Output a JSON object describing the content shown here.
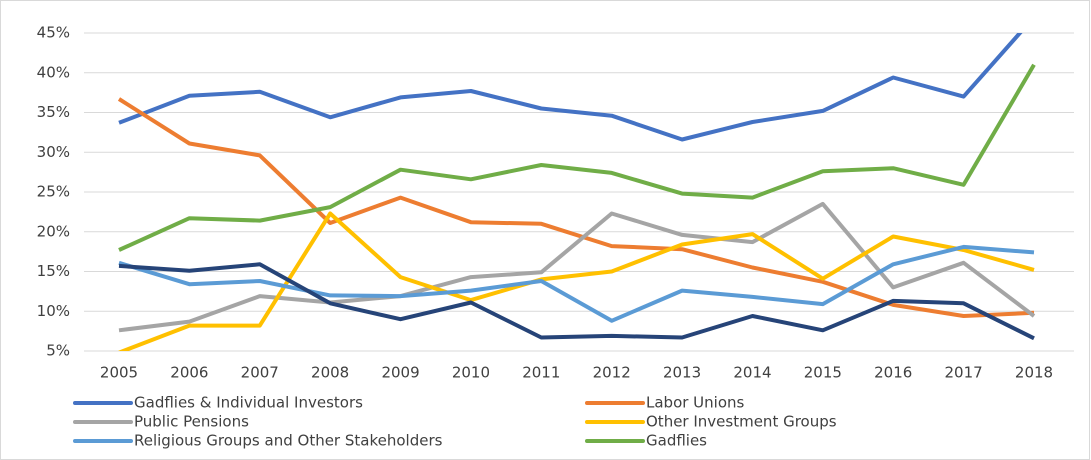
{
  "chart_data": {
    "type": "line",
    "x": [
      "2005",
      "2006",
      "2007",
      "2008",
      "2009",
      "2010",
      "2011",
      "2012",
      "2013",
      "2014",
      "2015",
      "2016",
      "2017",
      "2018"
    ],
    "series": [
      {
        "name": "Gadflies & Individual Investors",
        "color": "#4472c4",
        "values": [
          33.7,
          37.1,
          37.6,
          34.4,
          36.9,
          37.7,
          35.5,
          34.6,
          31.6,
          33.8,
          35.2,
          39.4,
          37.0,
          47.0
        ]
      },
      {
        "name": "Labor Unions",
        "color": "#ed7d31",
        "values": [
          36.7,
          31.1,
          29.6,
          21.1,
          24.3,
          21.2,
          21.0,
          18.2,
          17.8,
          15.5,
          13.7,
          10.8,
          9.4,
          9.8
        ]
      },
      {
        "name": "Public Pensions",
        "color": "#a5a5a5",
        "values": [
          7.6,
          8.7,
          11.9,
          11.1,
          11.9,
          14.3,
          14.9,
          22.3,
          19.6,
          18.7,
          23.5,
          13.0,
          16.1,
          9.4
        ]
      },
      {
        "name": "Other Investment Groups",
        "color": "#ffc000",
        "values": [
          4.8,
          8.2,
          8.2,
          22.3,
          14.3,
          11.4,
          14.0,
          15.0,
          18.4,
          19.7,
          14.1,
          19.4,
          17.7,
          15.2
        ]
      },
      {
        "name": "Religious Groups and Other Stakeholders",
        "color": "#5b9bd5",
        "values": [
          16.1,
          13.4,
          13.8,
          12.0,
          11.9,
          12.6,
          13.8,
          8.8,
          12.6,
          11.8,
          10.9,
          15.9,
          18.1,
          17.4
        ]
      },
      {
        "name": "Gadflies",
        "color": "#70ad47",
        "values": [
          17.7,
          21.7,
          21.4,
          23.1,
          27.8,
          26.6,
          28.4,
          27.4,
          24.8,
          24.3,
          27.6,
          28.0,
          25.9,
          41.0
        ]
      },
      {
        "color": "#264478",
        "values": [
          15.7,
          15.1,
          15.9,
          11.0,
          9.0,
          11.1,
          6.7,
          6.9,
          6.7,
          9.4,
          7.6,
          11.3,
          11.0,
          6.6
        ]
      }
    ],
    "ylim": [
      5,
      45
    ],
    "yticks": [
      {
        "value": 5,
        "label": "5%"
      },
      {
        "value": 10,
        "label": "10%"
      },
      {
        "value": 15,
        "label": "15%"
      },
      {
        "value": 20,
        "label": "20%"
      },
      {
        "value": 25,
        "label": "25%"
      },
      {
        "value": 30,
        "label": "30%"
      },
      {
        "value": 35,
        "label": "35%"
      },
      {
        "value": 40,
        "label": "40%"
      },
      {
        "value": 45,
        "label": "45%"
      }
    ],
    "grid": true
  }
}
